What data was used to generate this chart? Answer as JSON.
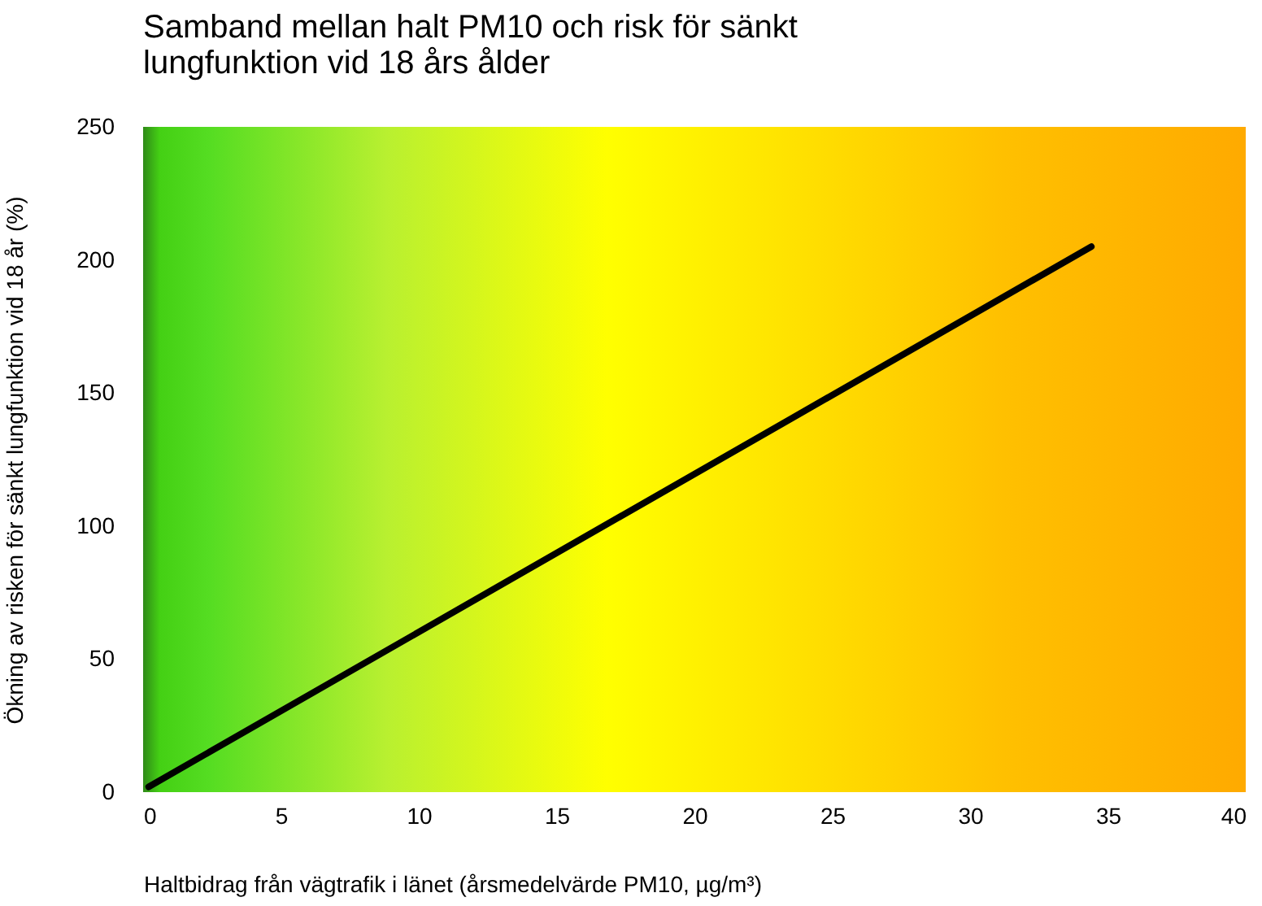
{
  "chart_data": {
    "type": "line",
    "title": "Samband mellan halt PM10 och risk för sänkt lungfunktion vid 18 års ålder",
    "xlabel": "Haltbidrag från vägtrafik i länet (årsmedelvärde PM10, µg/m³)",
    "ylabel": "Ökning av risken för sänkt lungfunktion vid 18 år (%)",
    "x": [
      0.2,
      34.4
    ],
    "series": [
      {
        "color": "#000000",
        "values": [
          2,
          205
        ]
      }
    ],
    "xlim": [
      0,
      40
    ],
    "xticks": [
      0,
      5,
      10,
      15,
      20,
      25,
      30,
      35,
      40
    ],
    "ylim": [
      0,
      250
    ],
    "yticks": [
      0,
      50,
      100,
      150,
      200,
      250
    ],
    "grid": false,
    "legend": false,
    "marker": "none",
    "line_style": "solid"
  }
}
